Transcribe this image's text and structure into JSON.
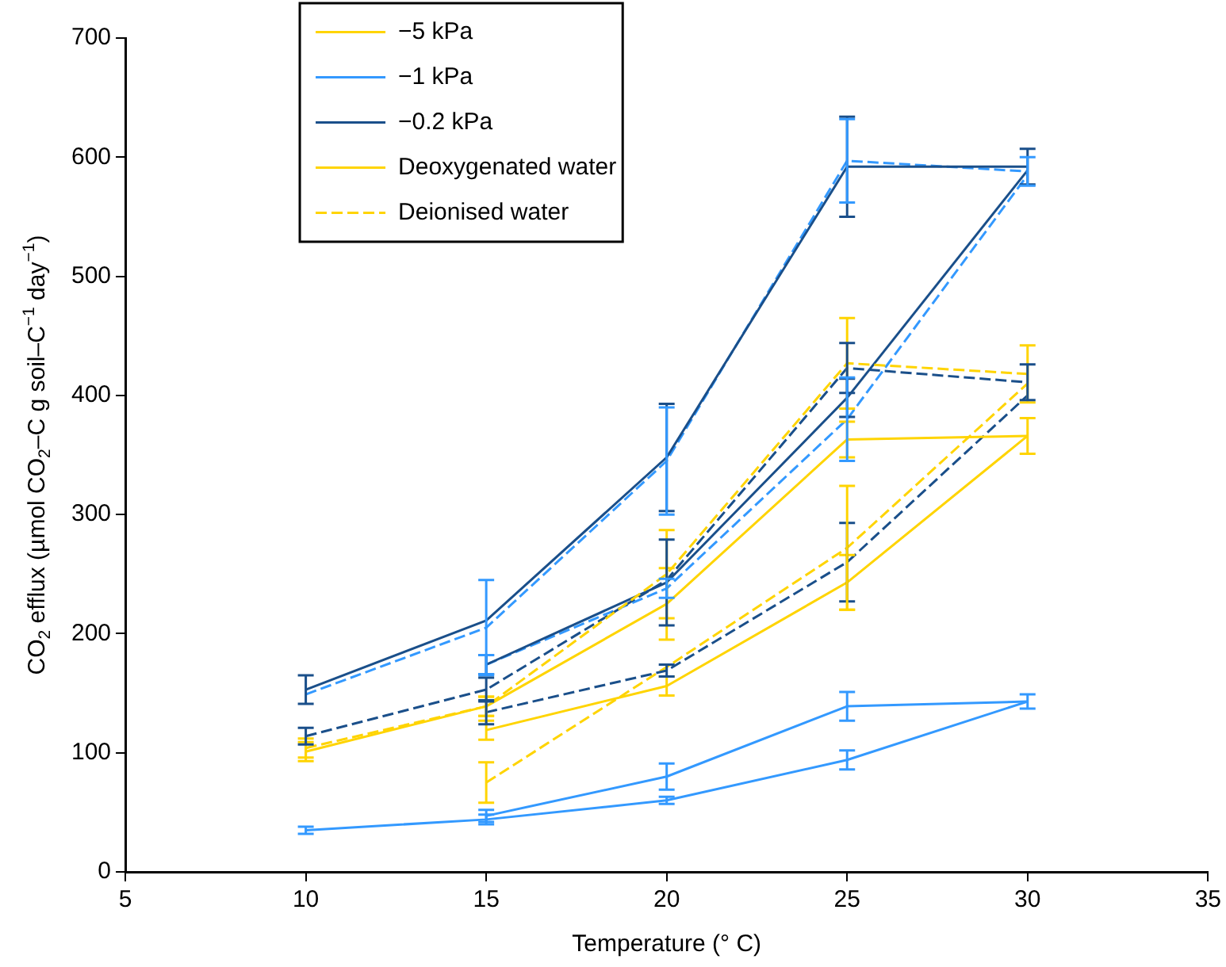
{
  "chart_data": {
    "type": "line",
    "xlabel": "Temperature (° C)",
    "ylabel": "CO$_{2}$ efflux (µmol CO$_{2}$–C g soil–C$^{−1}$ day$^{−1}$)",
    "xlim": [
      5,
      35
    ],
    "xticks": [
      5,
      10,
      15,
      20,
      25,
      30,
      35
    ],
    "ylim": [
      0,
      700
    ],
    "yticks": [
      0,
      100,
      200,
      300,
      400,
      500,
      600,
      700
    ],
    "grid": false,
    "legend": "top left",
    "series": [
      {
        "name": "−5 kPa",
        "color": "#ffd400",
        "line_style": "solid",
        "x": [
          10,
          15,
          20,
          25,
          30
        ],
        "values": [
          101,
          139,
          225,
          363,
          366
        ],
        "errors": [
          8,
          8,
          30,
          15,
          15
        ]
      },
      {
        "name": "−1 kPa",
        "color": "#3399ff",
        "line_style": "solid",
        "x": [
          10,
          15,
          20,
          25,
          30
        ],
        "values": [
          35,
          44,
          60,
          94,
          143
        ],
        "errors": [
          3,
          4,
          3,
          8,
          6
        ]
      },
      {
        "name": "−0.2 kPa",
        "color": "#1a4f8a",
        "line_style": "solid",
        "x": [
          10,
          15,
          20,
          25,
          30
        ],
        "values": [
          153,
          211,
          348,
          592,
          592
        ],
        "errors": [
          12,
          null,
          45,
          42,
          15
        ]
      },
      {
        "name": "Deoxygenated water",
        "color": "#ffd400",
        "line_style": "solid",
        "x": [
          15,
          20,
          25,
          30
        ],
        "values": [
          119,
          156,
          243,
          366
        ],
        "errors": [
          8,
          8,
          23,
          null
        ]
      },
      {
        "name": "Deionised water",
        "color": "#ffd400",
        "line_style": "dashed",
        "x": [
          10,
          15,
          20,
          25,
          30
        ],
        "values": [
          104,
          139,
          250,
          427,
          418
        ],
        "errors": [
          8,
          8,
          37,
          38,
          24
        ]
      },
      {
        "color": "#3399ff",
        "line_style": "dashed",
        "x": [
          10,
          15,
          20,
          25,
          30
        ],
        "values": [
          149,
          205,
          345,
          597,
          588
        ],
        "errors": [
          null,
          40,
          45,
          35,
          12
        ]
      },
      {
        "color": "#1a4f8a",
        "line_style": "dashed",
        "x": [
          10,
          15,
          20,
          25,
          30
        ],
        "values": [
          114,
          153,
          245,
          423,
          411
        ],
        "errors": [
          7,
          10,
          null,
          21,
          15
        ]
      },
      {
        "color": "#1a4f8a",
        "line_style": "solid",
        "x": [
          15,
          20,
          25,
          30
        ],
        "values": [
          174,
          243,
          398,
          589
        ],
        "errors": [
          8,
          36,
          16,
          null
        ]
      },
      {
        "color": "#3399ff",
        "line_style": "dashed",
        "x": [
          15,
          20,
          25,
          30
        ],
        "values": [
          174,
          238,
          380,
          585
        ],
        "errors": [
          8,
          8,
          35,
          null
        ]
      },
      {
        "color": "#1a4f8a",
        "line_style": "dashed",
        "x": [
          15,
          20,
          25,
          30
        ],
        "values": [
          134,
          169,
          260,
          400
        ],
        "errors": [
          10,
          5,
          33,
          null
        ]
      },
      {
        "color": "#ffd400",
        "line_style": "dashed",
        "x": [
          15,
          20,
          25,
          30
        ],
        "values": [
          75,
          172,
          272,
          410
        ],
        "errors": [
          17,
          null,
          52,
          null
        ]
      },
      {
        "color": "#3399ff",
        "line_style": "solid",
        "x": [
          15,
          20,
          25,
          30
        ],
        "values": [
          47,
          80,
          139,
          143
        ],
        "errors": [
          5,
          11,
          12,
          null
        ]
      }
    ]
  }
}
